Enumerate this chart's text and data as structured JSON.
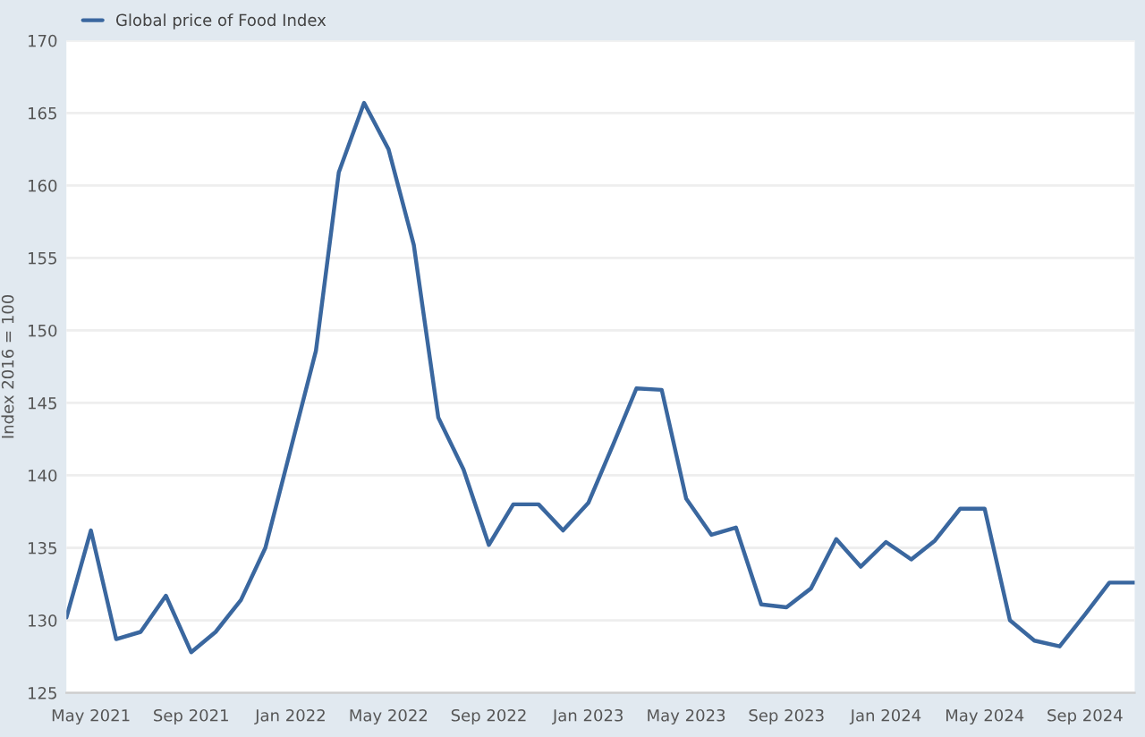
{
  "chart_data": {
    "type": "line",
    "ylabel": "Index 2016 = 100",
    "x": [
      "2021-04",
      "2021-05",
      "2021-06",
      "2021-07",
      "2021-08",
      "2021-09",
      "2021-10",
      "2021-11",
      "2021-12",
      "2022-01",
      "2022-02",
      "2022-03",
      "2022-04",
      "2022-05",
      "2022-06",
      "2022-07",
      "2022-08",
      "2022-09",
      "2022-10",
      "2022-11",
      "2022-12",
      "2023-01",
      "2023-02",
      "2023-03",
      "2023-04",
      "2023-05",
      "2023-06",
      "2023-07",
      "2023-08",
      "2023-09",
      "2023-10",
      "2023-11",
      "2023-12",
      "2024-01",
      "2024-02",
      "2024-03",
      "2024-04",
      "2024-05",
      "2024-06",
      "2024-07",
      "2024-08",
      "2024-09",
      "2024-10",
      "2024-11"
    ],
    "series": [
      {
        "name": "Global price of Food Index",
        "color": "#3a679f",
        "values": [
          130.2,
          136.2,
          128.7,
          129.2,
          131.7,
          127.8,
          129.2,
          131.4,
          135.0,
          141.8,
          148.6,
          160.9,
          165.7,
          162.5,
          155.9,
          144.0,
          140.4,
          135.2,
          138.0,
          138.0,
          136.2,
          138.1,
          142.2,
          146.0,
          145.9,
          138.4,
          135.9,
          136.4,
          131.1,
          130.9,
          132.2,
          135.6,
          133.7,
          135.4,
          134.2,
          135.5,
          137.7,
          137.7,
          130.0,
          128.6,
          128.2,
          130.4,
          132.6,
          132.6
        ]
      }
    ],
    "xlim": [
      "2021-04",
      "2024-11"
    ],
    "xticks": [
      {
        "value": "2021-05",
        "label": "May 2021"
      },
      {
        "value": "2021-09",
        "label": "Sep 2021"
      },
      {
        "value": "2022-01",
        "label": "Jan 2022"
      },
      {
        "value": "2022-05",
        "label": "May 2022"
      },
      {
        "value": "2022-09",
        "label": "Sep 2022"
      },
      {
        "value": "2023-01",
        "label": "Jan 2023"
      },
      {
        "value": "2023-05",
        "label": "May 2023"
      },
      {
        "value": "2023-09",
        "label": "Sep 2023"
      },
      {
        "value": "2024-01",
        "label": "Jan 2024"
      },
      {
        "value": "2024-05",
        "label": "May 2024"
      },
      {
        "value": "2024-09",
        "label": "Sep 2024"
      }
    ],
    "ylim": [
      125,
      170
    ],
    "yticks": [
      125,
      130,
      135,
      140,
      145,
      150,
      155,
      160,
      165,
      170
    ],
    "grid": "y",
    "legend": "top left",
    "marker": "none",
    "line_style": "solid"
  }
}
